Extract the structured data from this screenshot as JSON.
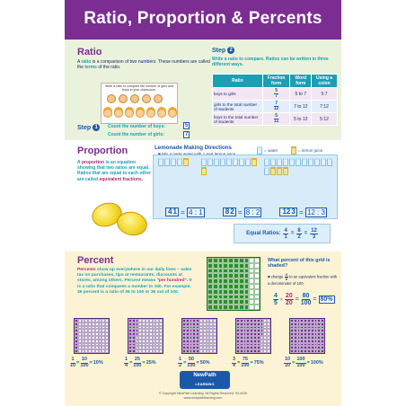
{
  "title": "Ratio, Proportion & Percents",
  "ratio": {
    "heading": "Ratio",
    "intro_1": "A",
    "intro_ratio": "ratio",
    "intro_2": "is a comparison of two numbers.",
    "intro_3": "These numbers are called the",
    "intro_terms": "terms",
    "intro_4": "of the ratio.",
    "face_caption": "Write a ratio to compare the number of girls and boys in your classroom.",
    "step1_label": "Step",
    "step1_num": "1",
    "count_boys": "Count the number of boys:",
    "count_girls": "Count the number of girls:",
    "boys_num": "5",
    "girls_num": "7",
    "step2_label": "Step",
    "step2_num": "2",
    "step2_text": "Write a ratio to compare. Ratios can be written in three different ways.",
    "table_headers": [
      "Ratio",
      "Fraction form",
      "Word form",
      "Using a colon"
    ],
    "table_rows": [
      {
        "label": "boys to girls",
        "num": "5",
        "den": "7",
        "word": "5 to 7",
        "colon": "5:7"
      },
      {
        "label": "girls to the total number of students",
        "num": "7",
        "den": "12",
        "word": "7 to 12",
        "colon": "7:12"
      },
      {
        "label": "boys to the total number of students",
        "num": "5",
        "den": "12",
        "word": "5 to 12",
        "colon": "5:12"
      }
    ]
  },
  "proportion": {
    "heading": "Proportion",
    "text_1": "A",
    "text_prop": "proportion",
    "text_2": "is an equation showing that two ratios are equal. Ratios that are equal to each other are called",
    "text_equiv": "equivalent fractions.",
    "lemon_title": "Lemonade Making Directions",
    "lemon_bullet": "Mix 4 parts water with 1 part lemon juice.",
    "legend_water": "= water",
    "legend_lemon": "= lemon juice",
    "eq": [
      {
        "n": "4",
        "d": "1",
        "colon": "4 : 1"
      },
      {
        "n": "8",
        "d": "2",
        "colon": "8 : 2"
      },
      {
        "n": "12",
        "d": "3",
        "colon": "12 : 3"
      }
    ],
    "equal_sign": "=",
    "equal_ratios_label": "Equal Ratios:",
    "equal_ratios": [
      {
        "n": "4",
        "d": "1"
      },
      {
        "n": "8",
        "d": "2"
      },
      {
        "n": "12",
        "d": "3"
      }
    ]
  },
  "percent": {
    "heading": "Percent",
    "text_percents": "Percents",
    "text_1": "show up everywhere in our daily lives – sales tax on purchases, tips at restaurants, discounts at stores, among others. Percent means",
    "text_quote": "\"per hundred\".",
    "text_2": "It is a ratio that compares a number to 100. For example, 36 percent is a ratio of 36 to 100 or 36 out of 100.",
    "question": "What percent of this grid is shaded?",
    "hint_1": "change",
    "hint_2": "to an equivalent fraction with a denominator of 100.",
    "eq_a_n": "4",
    "eq_a_d": "5",
    "eq_b_n": "20",
    "eq_b_d": "20",
    "eq_c_n": "80",
    "eq_c_d": "100",
    "eq_result": "80%",
    "shaded_green": 80,
    "examples": [
      {
        "n": "1",
        "d": "10",
        "n2": "10",
        "d2": "100",
        "pct": "10%",
        "shaded": 10
      },
      {
        "n": "1",
        "d": "4",
        "n2": "25",
        "d2": "100",
        "pct": "25%",
        "shaded": 25
      },
      {
        "n": "1",
        "d": "2",
        "n2": "50",
        "d2": "100",
        "pct": "50%",
        "shaded": 50
      },
      {
        "n": "3",
        "d": "4",
        "n2": "75",
        "d2": "100",
        "pct": "75%",
        "shaded": 75
      },
      {
        "n": "10",
        "d": "10",
        "n2": "100",
        "d2": "100",
        "pct": "100%",
        "shaded": 100
      }
    ]
  },
  "footer": {
    "logo_1": "NewPath",
    "logo_2": "LEARNING",
    "copyright": "© Copyright NewPath Learning. All Rights Reserved. 93-4226",
    "url": "www.newpathlearning.com"
  },
  "colors": {
    "title_bg": "#7b2d91",
    "accent_teal": "#1a9fb3",
    "accent_blue": "#1b58a8",
    "accent_purple": "#7b2d91",
    "grid_green": "#2d8f2d"
  }
}
